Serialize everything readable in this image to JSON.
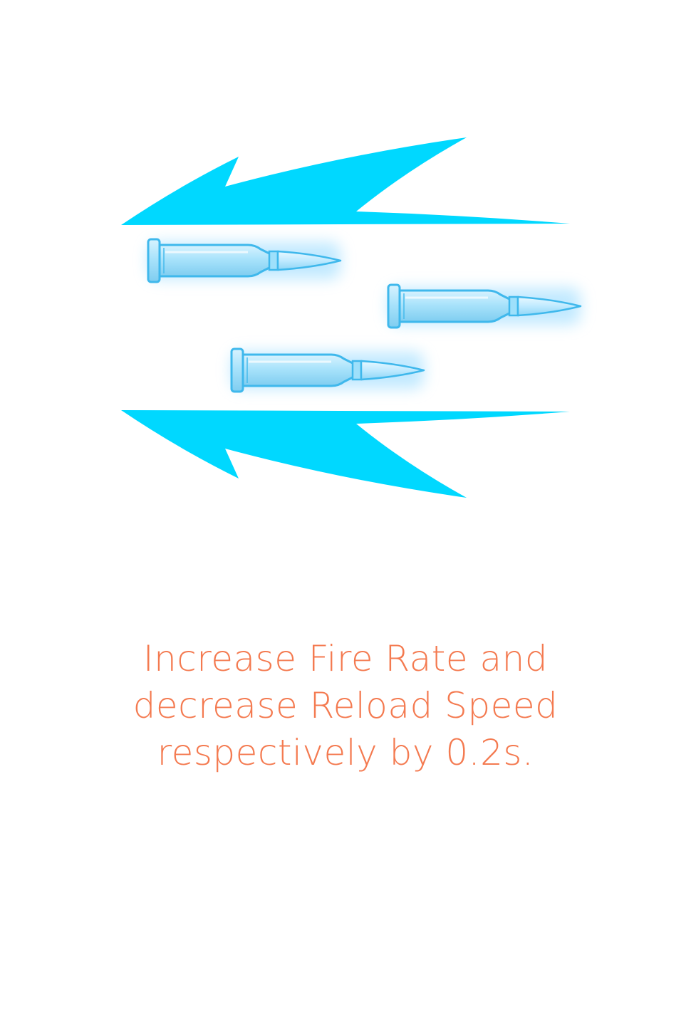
{
  "card": {
    "description_lines": [
      "Increase Fire Rate and",
      "decrease Reload Speed",
      "respectively by 0.2s."
    ]
  },
  "icons": {
    "top_arrow": "speed-arrow-left-icon",
    "bottom_arrow": "speed-arrow-left-icon",
    "bullets": [
      "bullet-icon",
      "bullet-icon",
      "bullet-icon"
    ]
  },
  "colors": {
    "arrow": "#00d8ff",
    "bullet_casing": "#a8e4ff",
    "bullet_outline": "#4ec3f2",
    "bullet_glow": "#9fdcff",
    "text": "#f47a50",
    "background": "#ffffff"
  }
}
